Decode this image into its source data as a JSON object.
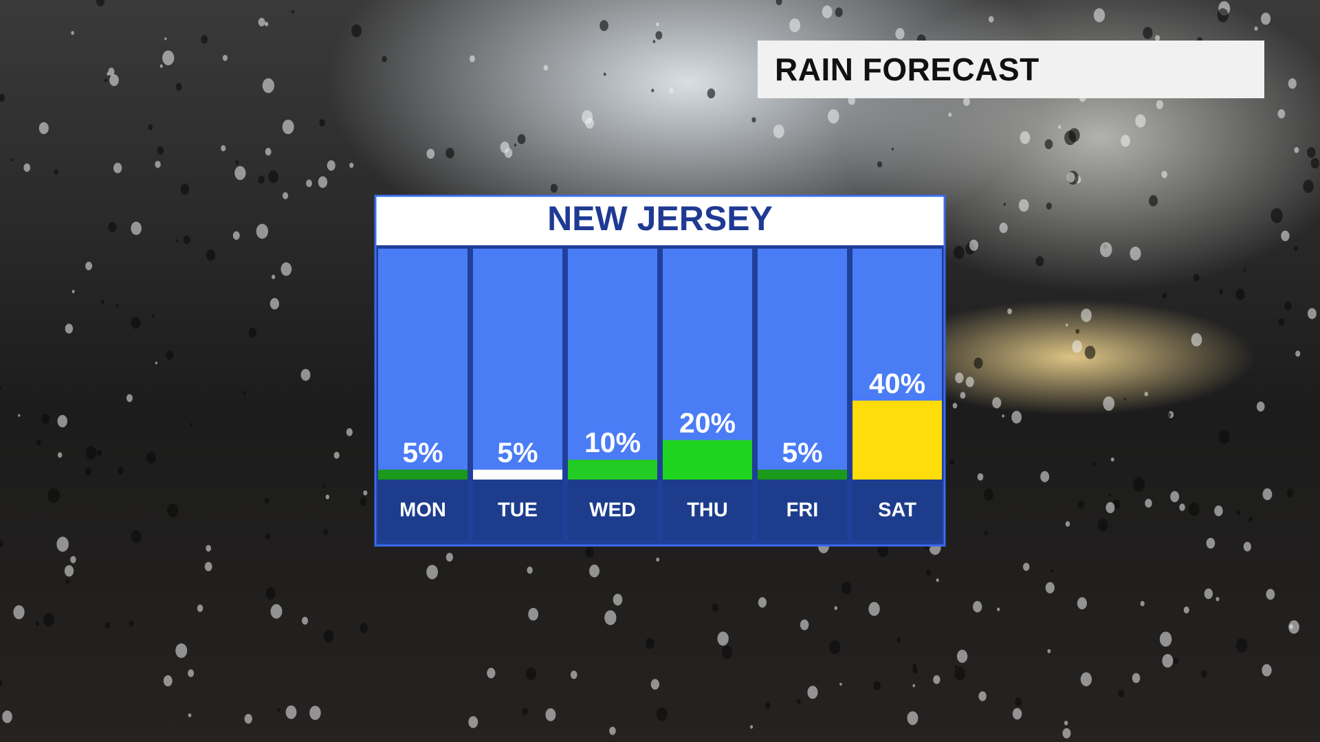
{
  "header": {
    "title": "RAIN FORECAST"
  },
  "chart_data": {
    "type": "bar",
    "title": "NEW JERSEY",
    "categories": [
      "MON",
      "TUE",
      "WED",
      "THU",
      "FRI",
      "SAT"
    ],
    "values": [
      5,
      5,
      10,
      20,
      5,
      40
    ],
    "value_labels": [
      "5%",
      "5%",
      "10%",
      "20%",
      "5%",
      "40%"
    ],
    "colors": [
      "#1a9a1a",
      "#ffffff",
      "#22cc22",
      "#1fd41f",
      "#1a9a1a",
      "#ffdd0a"
    ],
    "ylim": [
      0,
      117
    ]
  }
}
